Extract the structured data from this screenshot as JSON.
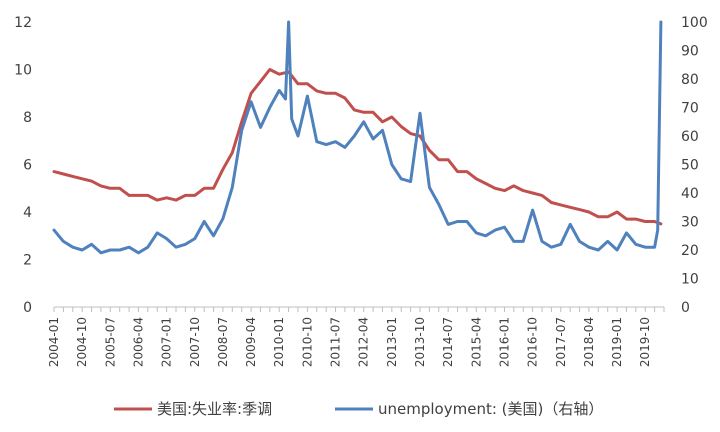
{
  "chart_data": {
    "type": "line",
    "x_ticks": [
      "2004-01",
      "2004-10",
      "2005-07",
      "2006-04",
      "2007-01",
      "2007-10",
      "2008-07",
      "2009-04",
      "2010-01",
      "2010-10",
      "2011-07",
      "2012-04",
      "2013-01",
      "2013-10",
      "2014-07",
      "2015-04",
      "2016-01",
      "2016-10",
      "2017-07",
      "2018-04",
      "2019-01",
      "2019-10"
    ],
    "x_range": [
      "2004-01",
      "2020-04"
    ],
    "y_left": {
      "min": 0,
      "max": 12,
      "ticks": [
        0,
        2,
        4,
        6,
        8,
        10,
        12
      ]
    },
    "y_right": {
      "min": 0,
      "max": 100,
      "ticks": [
        0,
        10,
        20,
        30,
        40,
        50,
        60,
        70,
        80,
        90,
        100
      ]
    },
    "grid": false,
    "legend_position": "bottom",
    "colors": {
      "series_left": "#C0504D",
      "series_right": "#4F81BD"
    },
    "series": [
      {
        "name": "美国:失业率:季调",
        "axis": "left",
        "x": [
          "2004-01",
          "2004-04",
          "2004-07",
          "2004-10",
          "2005-01",
          "2005-04",
          "2005-07",
          "2005-10",
          "2006-01",
          "2006-04",
          "2006-07",
          "2006-10",
          "2007-01",
          "2007-04",
          "2007-07",
          "2007-10",
          "2008-01",
          "2008-04",
          "2008-07",
          "2008-10",
          "2009-01",
          "2009-04",
          "2009-07",
          "2009-10",
          "2010-01",
          "2010-04",
          "2010-07",
          "2010-10",
          "2011-01",
          "2011-04",
          "2011-07",
          "2011-10",
          "2012-01",
          "2012-04",
          "2012-07",
          "2012-10",
          "2013-01",
          "2013-04",
          "2013-07",
          "2013-10",
          "2014-01",
          "2014-04",
          "2014-07",
          "2014-10",
          "2015-01",
          "2015-04",
          "2015-07",
          "2015-10",
          "2016-01",
          "2016-04",
          "2016-07",
          "2016-10",
          "2017-01",
          "2017-04",
          "2017-07",
          "2017-10",
          "2018-01",
          "2018-04",
          "2018-07",
          "2018-10",
          "2019-01",
          "2019-04",
          "2019-07",
          "2019-10",
          "2020-01",
          "2020-03"
        ],
        "values": [
          5.7,
          5.6,
          5.5,
          5.4,
          5.3,
          5.1,
          5.0,
          5.0,
          4.7,
          4.7,
          4.7,
          4.5,
          4.6,
          4.5,
          4.7,
          4.7,
          5.0,
          5.0,
          5.8,
          6.5,
          7.8,
          9.0,
          9.5,
          10.0,
          9.8,
          9.9,
          9.4,
          9.4,
          9.1,
          9.0,
          9.0,
          8.8,
          8.3,
          8.2,
          8.2,
          7.8,
          8.0,
          7.6,
          7.3,
          7.2,
          6.6,
          6.2,
          6.2,
          5.7,
          5.7,
          5.4,
          5.2,
          5.0,
          4.9,
          5.1,
          4.9,
          4.8,
          4.7,
          4.4,
          4.3,
          4.2,
          4.1,
          4.0,
          3.8,
          3.8,
          4.0,
          3.7,
          3.7,
          3.6,
          3.6,
          3.5
        ]
      },
      {
        "name": "unemployment: (美国)（右轴）",
        "axis": "right",
        "x": [
          "2004-01",
          "2004-04",
          "2004-07",
          "2004-10",
          "2005-01",
          "2005-04",
          "2005-07",
          "2005-10",
          "2006-01",
          "2006-04",
          "2006-07",
          "2006-10",
          "2007-01",
          "2007-04",
          "2007-07",
          "2007-10",
          "2008-01",
          "2008-04",
          "2008-07",
          "2008-10",
          "2009-01",
          "2009-04",
          "2009-07",
          "2009-10",
          "2010-01",
          "2010-03",
          "2010-04",
          "2010-05",
          "2010-07",
          "2010-10",
          "2011-01",
          "2011-04",
          "2011-07",
          "2011-10",
          "2012-01",
          "2012-04",
          "2012-07",
          "2012-10",
          "2013-01",
          "2013-04",
          "2013-07",
          "2013-10",
          "2014-01",
          "2014-04",
          "2014-07",
          "2014-10",
          "2015-01",
          "2015-04",
          "2015-07",
          "2015-10",
          "2016-01",
          "2016-04",
          "2016-07",
          "2016-10",
          "2017-01",
          "2017-04",
          "2017-07",
          "2017-10",
          "2018-01",
          "2018-04",
          "2018-07",
          "2018-10",
          "2019-01",
          "2019-04",
          "2019-07",
          "2019-10",
          "2020-01",
          "2020-02",
          "2020-03"
        ],
        "values": [
          27,
          23,
          21,
          20,
          22,
          19,
          20,
          20,
          21,
          19,
          21,
          26,
          24,
          21,
          22,
          24,
          30,
          25,
          31,
          42,
          62,
          72,
          63,
          70,
          76,
          73,
          100,
          66,
          60,
          74,
          58,
          57,
          58,
          56,
          60,
          65,
          59,
          62,
          50,
          45,
          44,
          68,
          42,
          36,
          29,
          30,
          30,
          26,
          25,
          27,
          28,
          23,
          23,
          34,
          23,
          21,
          22,
          29,
          23,
          21,
          20,
          23,
          20,
          26,
          22,
          21,
          21,
          27,
          100
        ]
      }
    ],
    "legend": [
      "美国:失业率:季调",
      "unemployment: (美国)（右轴）"
    ]
  }
}
